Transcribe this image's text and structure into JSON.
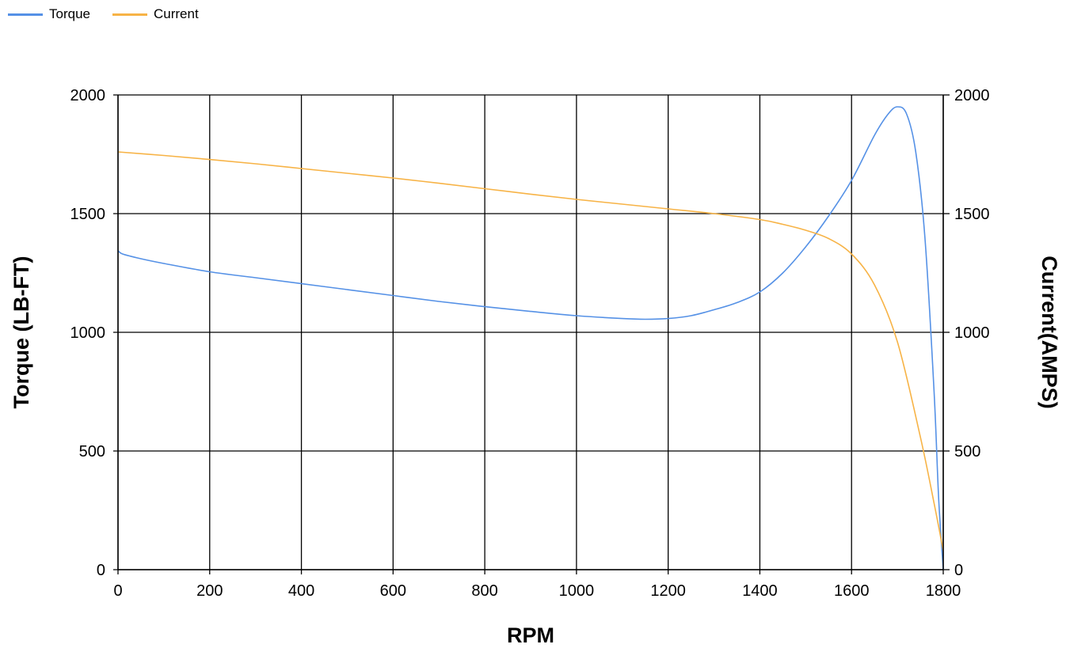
{
  "legend": [
    {
      "name": "Torque",
      "color": "#5591e6"
    },
    {
      "name": "Current",
      "color": "#f7b346"
    }
  ],
  "chart_data": {
    "type": "line",
    "title": "",
    "xlabel": "RPM",
    "ylabel": "Torque (LB-FT)",
    "y2label": "Current(AMPS)",
    "xlim": [
      0,
      1800
    ],
    "ylim": [
      0,
      2000
    ],
    "y2lim": [
      0,
      2000
    ],
    "x_ticks": [
      0,
      200,
      400,
      600,
      800,
      1000,
      1200,
      1400,
      1600,
      1800
    ],
    "y_ticks": [
      0,
      500,
      1000,
      1500,
      2000
    ],
    "y2_ticks": [
      0,
      500,
      1000,
      1500,
      2000
    ],
    "grid": true,
    "legend_position": "top-left",
    "series": [
      {
        "name": "Torque",
        "axis": "left",
        "color": "#5591e6",
        "x": [
          0,
          10,
          50,
          100,
          200,
          300,
          400,
          500,
          600,
          700,
          800,
          900,
          1000,
          1100,
          1150,
          1200,
          1250,
          1300,
          1350,
          1400,
          1450,
          1500,
          1550,
          1600,
          1650,
          1680,
          1700,
          1720,
          1740,
          1760,
          1780,
          1790,
          1800
        ],
        "values": [
          1345,
          1330,
          1310,
          1290,
          1255,
          1230,
          1205,
          1180,
          1155,
          1130,
          1108,
          1088,
          1070,
          1058,
          1055,
          1058,
          1070,
          1095,
          1125,
          1170,
          1250,
          1360,
          1490,
          1640,
          1830,
          1920,
          1950,
          1920,
          1760,
          1400,
          750,
          300,
          0
        ]
      },
      {
        "name": "Current",
        "axis": "right",
        "color": "#f7b346",
        "x": [
          0,
          100,
          200,
          300,
          400,
          500,
          600,
          700,
          800,
          900,
          1000,
          1100,
          1200,
          1300,
          1400,
          1450,
          1500,
          1550,
          1600,
          1650,
          1700,
          1750,
          1780,
          1800
        ],
        "values": [
          1760,
          1745,
          1728,
          1710,
          1690,
          1670,
          1650,
          1628,
          1605,
          1582,
          1560,
          1540,
          1520,
          1500,
          1475,
          1455,
          1430,
          1395,
          1330,
          1200,
          960,
          560,
          280,
          80
        ]
      }
    ]
  }
}
